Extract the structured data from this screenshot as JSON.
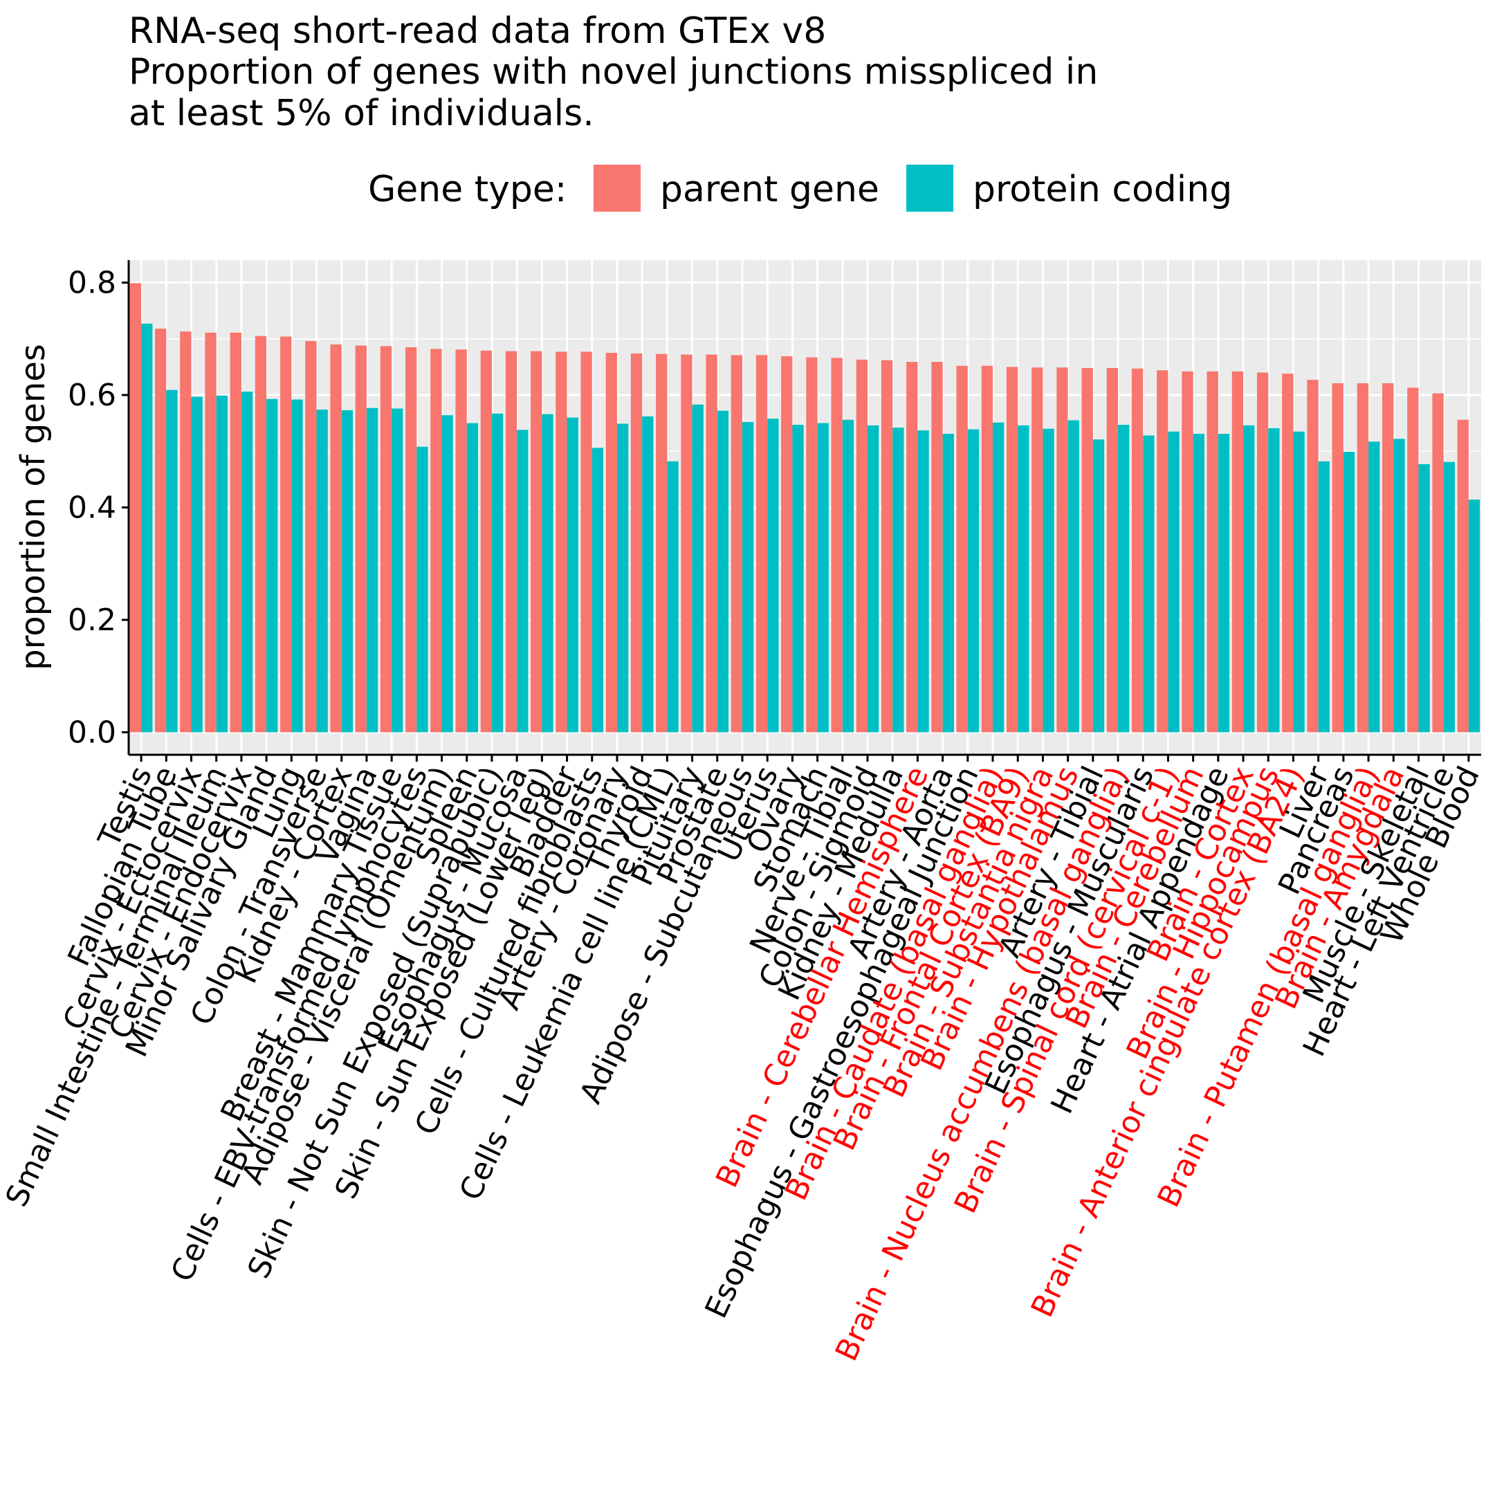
{
  "chart_data": {
    "type": "bar",
    "title_lines": [
      "RNA-seq short-read data from GTEx v8",
      "Proportion of genes with novel junctions misspliced in",
      "at least 5% of individuals."
    ],
    "xlabel": "",
    "ylabel": "proportion of genes",
    "ylim": [
      -0.04,
      0.84
    ],
    "yticks": [
      0.0,
      0.2,
      0.4,
      0.6,
      0.8
    ],
    "ytick_labels": [
      "0.0",
      "0.2",
      "0.4",
      "0.6",
      "0.8"
    ],
    "grid": true,
    "legend": {
      "title": "Gene type:",
      "placement": "top",
      "entries": [
        "parent gene",
        "protein coding"
      ]
    },
    "colors": {
      "parent gene": "#F8766D",
      "protein coding": "#00BFC4",
      "brain_label": "#FF0000",
      "other_label": "#000000",
      "panel_bg": "#EBEBEB",
      "grid": "#FFFFFF"
    },
    "categories": [
      "Testis",
      "Fallopian Tube",
      "Cervix - Ectocervix",
      "Small Intestine - Terminal Ileum",
      "Cervix - Endocervix",
      "Minor Salivary Gland",
      "Lung",
      "Colon - Transverse",
      "Kidney - Cortex",
      "Vagina",
      "Breast - Mammary Tissue",
      "Cells - EBV-transformed lymphocytes",
      "Adipose - Visceral (Omentum)",
      "Spleen",
      "Skin - Not Sun Exposed (Suprapubic)",
      "Esophagus - Mucosa",
      "Skin - Sun Exposed (Lower leg)",
      "Bladder",
      "Cells - Cultured fibroblasts",
      "Artery - Coronary",
      "Thyroid",
      "Cells - Leukemia cell line (CML)",
      "Pituitary",
      "Prostate",
      "Adipose - Subcutaneous",
      "Uterus",
      "Ovary",
      "Stomach",
      "Nerve - Tibial",
      "Colon - Sigmoid",
      "Kidney - Medulla",
      "Brain - Cerebellar Hemisphere",
      "Artery - Aorta",
      "Esophagus - Gastroesophageal Junction",
      "Brain - Caudate (basal ganglia)",
      "Brain - Frontal Cortex (BA9)",
      "Brain - Substantia nigra",
      "Brain - Hypothalamus",
      "Artery - Tibial",
      "Brain - Nucleus accumbens (basal ganglia)",
      "Esophagus - Muscularis",
      "Brain - Spinal cord (cervical c-1)",
      "Brain - Cerebellum",
      "Heart - Atrial Appendage",
      "Brain - Cortex",
      "Brain - Hippocampus",
      "Brain - Anterior cingulate cortex (BA24)",
      "Liver",
      "Pancreas",
      "Brain - Putamen (basal ganglia)",
      "Brain - Amygdala",
      "Muscle - Skeletal",
      "Heart - Left Ventricle",
      "Whole Blood"
    ],
    "series": [
      {
        "name": "parent gene",
        "values": [
          0.799,
          0.718,
          0.713,
          0.711,
          0.711,
          0.705,
          0.704,
          0.696,
          0.69,
          0.688,
          0.687,
          0.685,
          0.682,
          0.681,
          0.679,
          0.678,
          0.678,
          0.677,
          0.677,
          0.675,
          0.674,
          0.673,
          0.672,
          0.672,
          0.671,
          0.671,
          0.669,
          0.667,
          0.666,
          0.663,
          0.662,
          0.659,
          0.659,
          0.652,
          0.652,
          0.65,
          0.649,
          0.649,
          0.648,
          0.648,
          0.647,
          0.644,
          0.642,
          0.642,
          0.642,
          0.64,
          0.638,
          0.627,
          0.621,
          0.621,
          0.621,
          0.613,
          0.603,
          0.556
        ]
      },
      {
        "name": "protein coding",
        "values": [
          0.727,
          0.609,
          0.597,
          0.599,
          0.606,
          0.593,
          0.592,
          0.574,
          0.573,
          0.577,
          0.576,
          0.508,
          0.564,
          0.55,
          0.567,
          0.538,
          0.566,
          0.56,
          0.506,
          0.549,
          0.562,
          0.482,
          0.583,
          0.572,
          0.552,
          0.558,
          0.547,
          0.55,
          0.556,
          0.546,
          0.542,
          0.537,
          0.531,
          0.539,
          0.551,
          0.546,
          0.54,
          0.555,
          0.521,
          0.547,
          0.528,
          0.535,
          0.531,
          0.531,
          0.546,
          0.541,
          0.535,
          0.482,
          0.499,
          0.517,
          0.522,
          0.477,
          0.481,
          0.414
        ]
      }
    ]
  }
}
